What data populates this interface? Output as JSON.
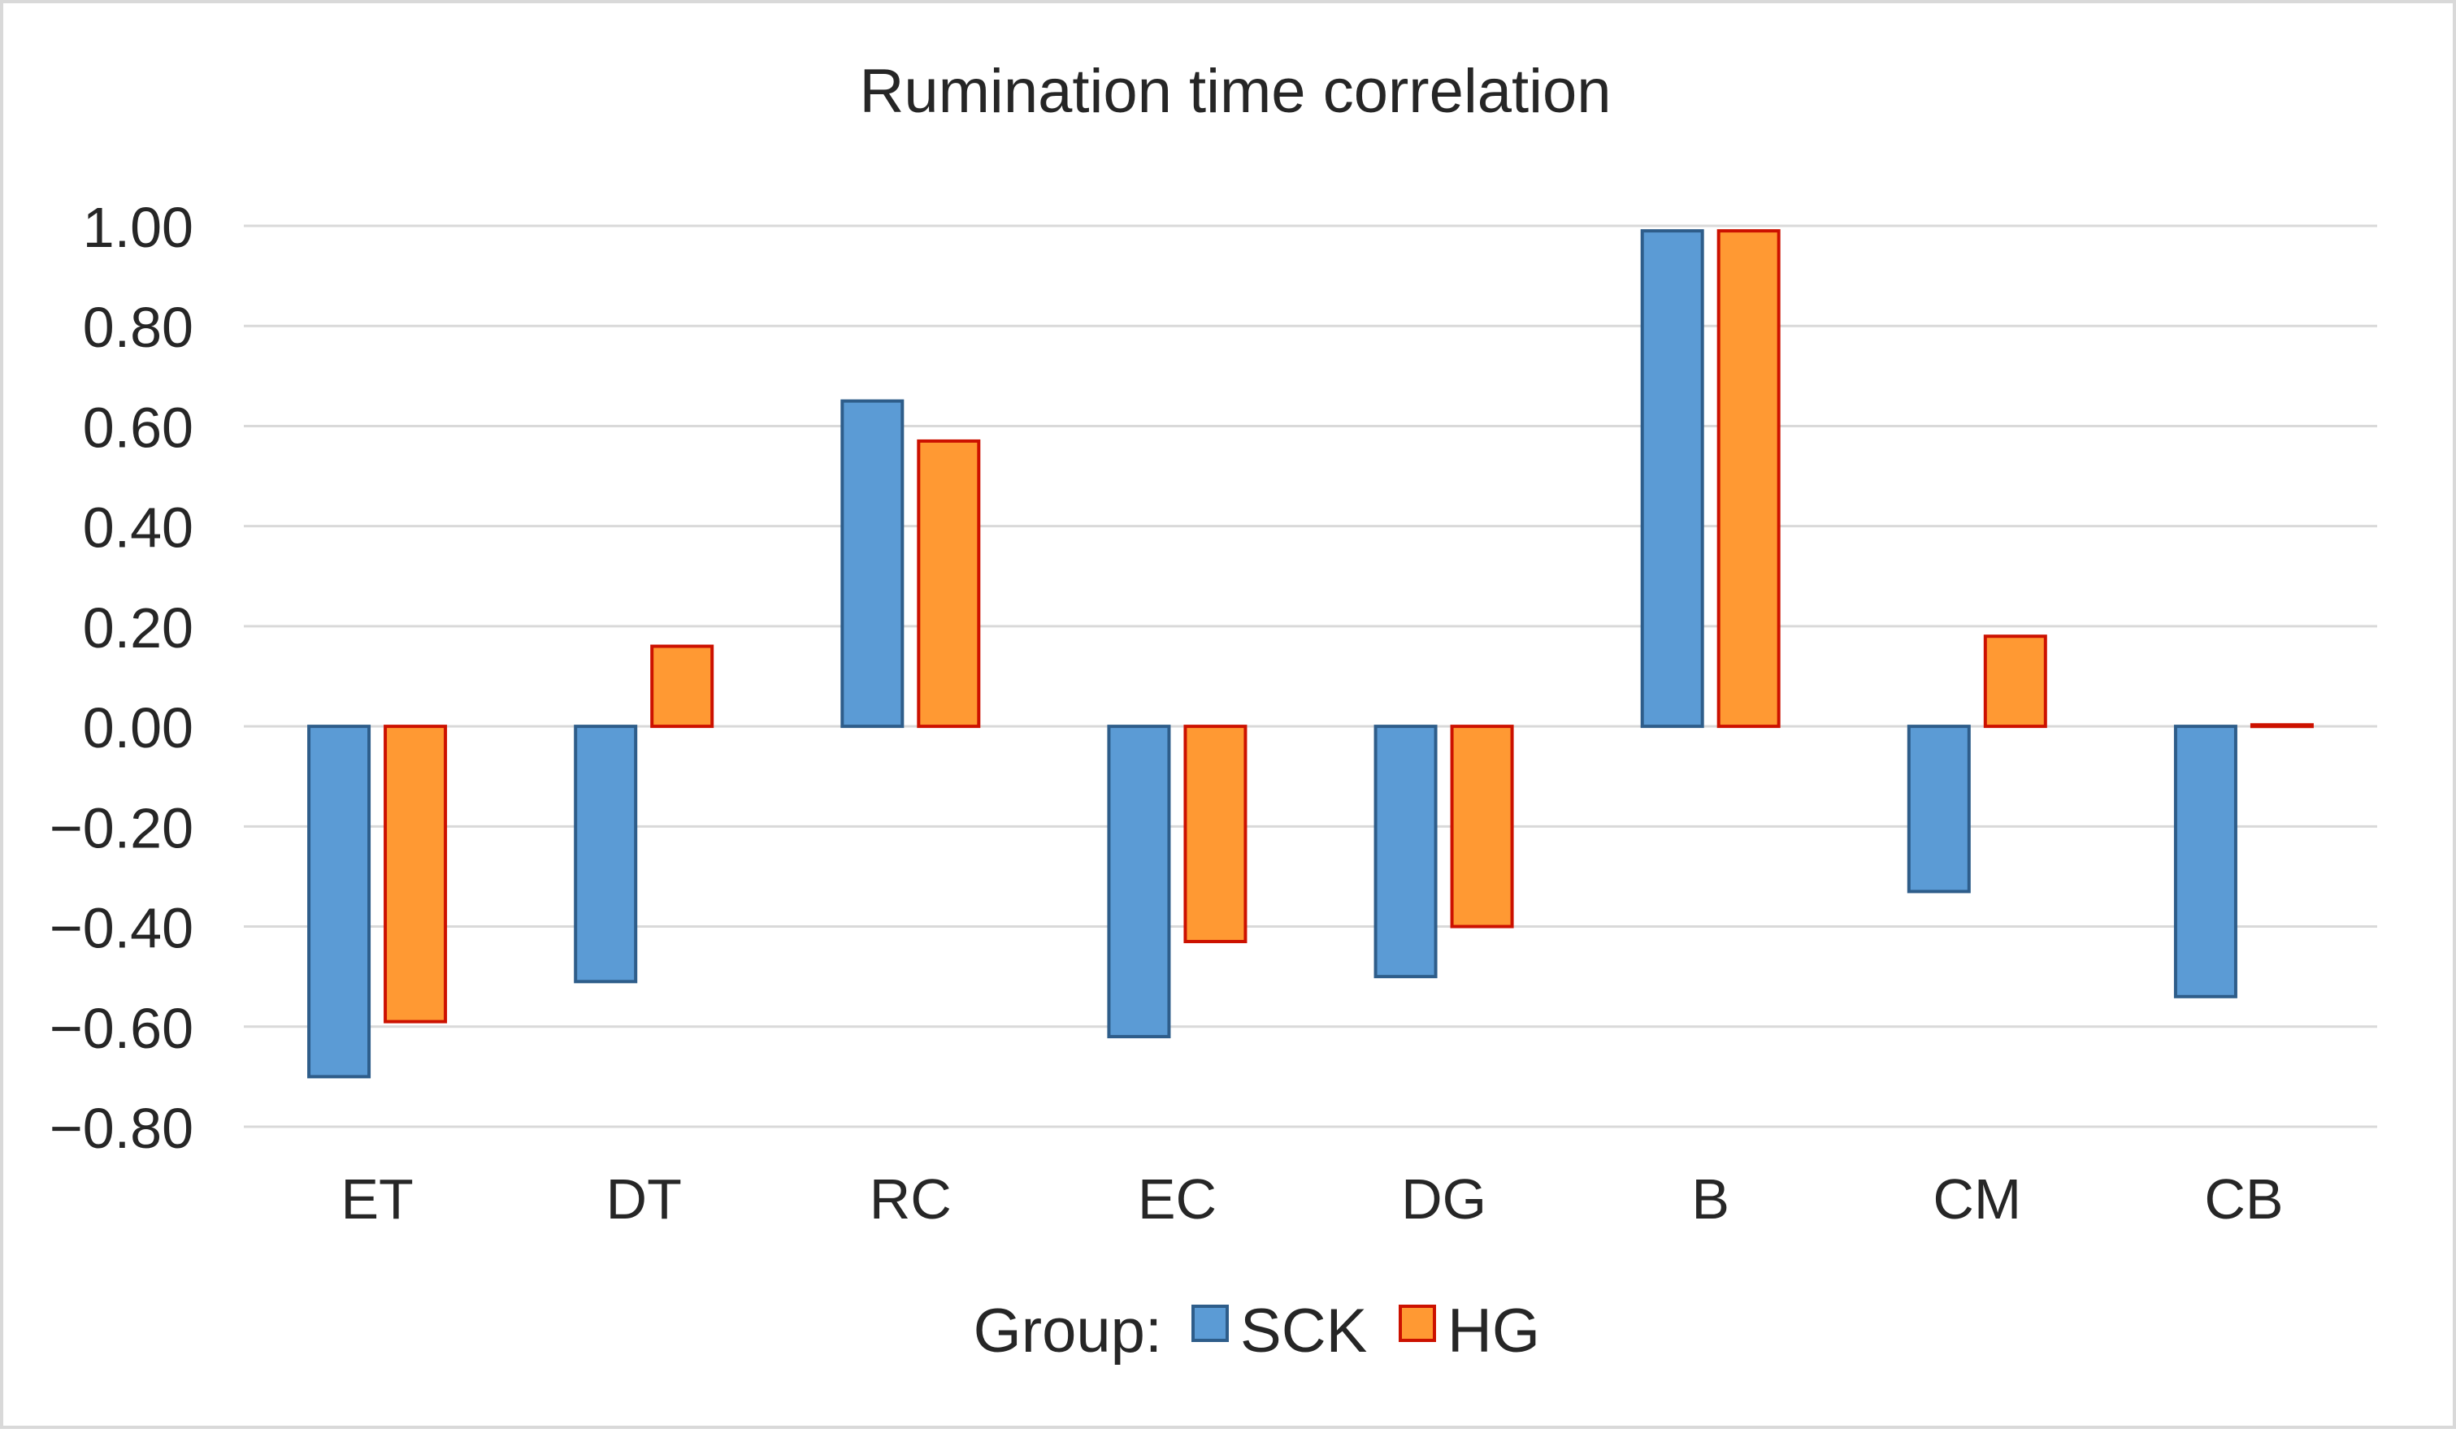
{
  "chart_data": {
    "type": "bar",
    "title": "Rumination time correlation",
    "categories": [
      "ET",
      "DT",
      "RC",
      "EC",
      "DG",
      "B",
      "CM",
      "CB"
    ],
    "series": [
      {
        "name": "SCK",
        "values": [
          -0.7,
          -0.51,
          0.65,
          -0.62,
          -0.5,
          0.99,
          -0.33,
          -0.54
        ],
        "fill": "#5b9bd5",
        "stroke": "#2e5d8a"
      },
      {
        "name": "HG",
        "values": [
          -0.59,
          0.16,
          0.57,
          -0.43,
          -0.4,
          0.99,
          0.18,
          0.003
        ],
        "fill": "#ff9933",
        "stroke": "#cc1100"
      }
    ],
    "yticks": [
      "1.00",
      "0.80",
      "0.60",
      "0.40",
      "0.20",
      "0.00",
      "−0.20",
      "−0.40",
      "−0.60",
      "−0.80"
    ],
    "ylim": [
      -0.8,
      1.0
    ],
    "ystep": 0.2,
    "grid": true,
    "xlabel": "",
    "ylabel": "",
    "legend": {
      "title": "Group:",
      "position": "bottom"
    }
  }
}
